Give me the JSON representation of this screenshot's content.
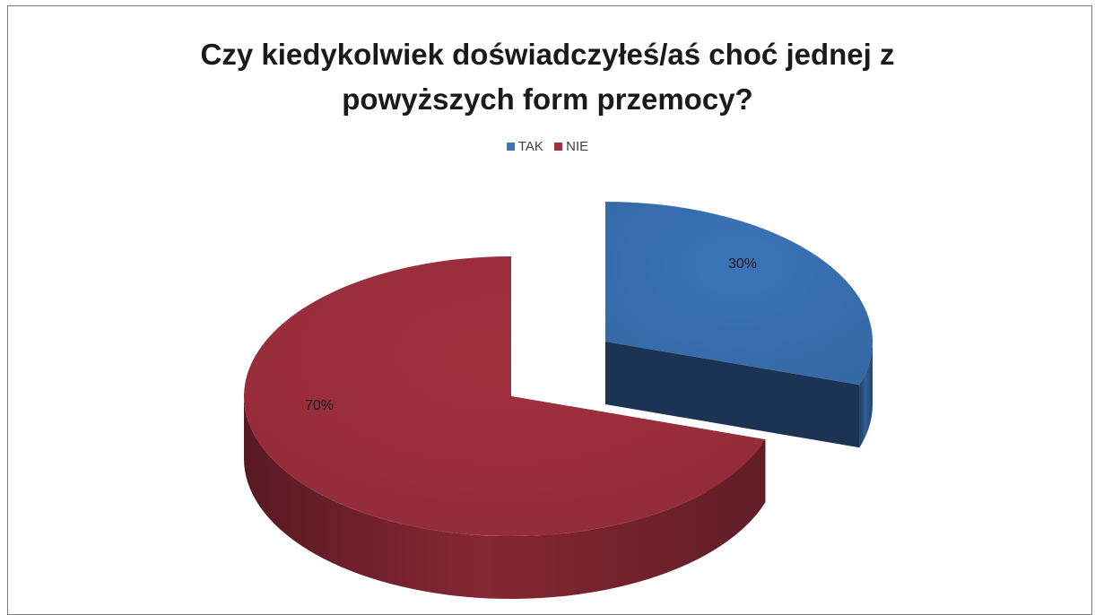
{
  "chart_data": {
    "type": "pie",
    "title_lines": [
      "Czy kiedykolwiek doświadczyłeś/aś choć jednej z",
      "powyższych form przemocy?"
    ],
    "categories": [
      "TAK",
      "NIE"
    ],
    "values": [
      30,
      70
    ],
    "data_labels": [
      "30%",
      "70%"
    ],
    "legend_position": "top",
    "style": "3d-exploded",
    "colors": {
      "TAK": "#3b74b8",
      "NIE": "#a2303f"
    }
  }
}
